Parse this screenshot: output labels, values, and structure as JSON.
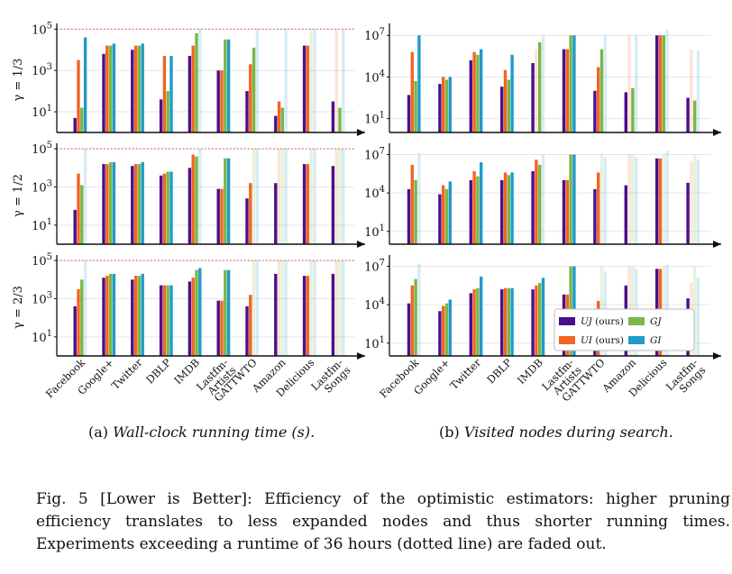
{
  "chart_data": {
    "type": "bar",
    "categories": [
      "Facebook",
      "Google+",
      "Twitter",
      "DBLP",
      "IMDB",
      "Lastfm-Artists",
      "GATTWTO",
      "Amazon",
      "Delicious",
      "Lastfm-Songs"
    ],
    "category_labels": [
      [
        "Facebook"
      ],
      [
        "Google+"
      ],
      [
        "Twitter"
      ],
      [
        "DBLP"
      ],
      [
        "IMDB"
      ],
      [
        "Lastfm-",
        "Artists"
      ],
      [
        "GATTWTO"
      ],
      [
        "Amazon"
      ],
      [
        "Delicious"
      ],
      [
        "Lastfm-",
        "Songs"
      ]
    ],
    "series_names": [
      "UJ",
      "UI",
      "GJ",
      "GI"
    ],
    "legend": [
      {
        "name": "UJ",
        "label": "UJ",
        "suffix": "(ours)",
        "color": "#4a0f8c"
      },
      {
        "name": "UI",
        "label": "UI",
        "suffix": "(ours)",
        "color": "#f26522"
      },
      {
        "name": "GJ",
        "label": "GJ",
        "suffix": "",
        "color": "#7ab648"
      },
      {
        "name": "GI",
        "label": "GI",
        "suffix": "",
        "color": "#1f9bc9"
      }
    ],
    "gamma_labels": [
      "γ = 1/3",
      "γ = 1/2",
      "γ = 2/3"
    ],
    "subcaptions": {
      "a": {
        "prefix": "(a)",
        "text": "Wall-clock running time (s)."
      },
      "b": {
        "prefix": "(b)",
        "text": "Visited nodes during search."
      }
    },
    "panels": [
      {
        "id": "a1",
        "column": "time",
        "row": 1,
        "ylabel": "γ = 1/3",
        "yticks": [
          "10^1",
          "10^3",
          "10^5"
        ],
        "ylim_log10": [
          0,
          5.1
        ],
        "timeout_line": true,
        "series": [
          {
            "name": "UJ",
            "values": [
              0.7,
              3.8,
              4.0,
              1.6,
              3.7,
              3.0,
              2.0,
              0.8,
              4.2,
              1.5
            ],
            "faded": [
              false,
              false,
              false,
              false,
              false,
              false,
              false,
              false,
              false,
              false
            ]
          },
          {
            "name": "UI",
            "values": [
              3.5,
              4.2,
              4.2,
              3.7,
              4.2,
              3.0,
              3.3,
              1.5,
              4.2,
              5.0
            ],
            "faded": [
              false,
              false,
              false,
              false,
              false,
              false,
              false,
              false,
              false,
              true
            ]
          },
          {
            "name": "GJ",
            "values": [
              1.2,
              4.2,
              4.2,
              2.0,
              4.8,
              4.5,
              4.1,
              1.2,
              5.0,
              1.2
            ],
            "faded": [
              false,
              false,
              false,
              false,
              false,
              false,
              false,
              false,
              true,
              false
            ]
          },
          {
            "name": "GI",
            "values": [
              4.6,
              4.3,
              4.3,
              3.7,
              5.0,
              4.5,
              5.0,
              5.0,
              5.0,
              5.0
            ],
            "faded": [
              false,
              false,
              false,
              false,
              true,
              false,
              true,
              true,
              true,
              true
            ]
          }
        ]
      },
      {
        "id": "a2",
        "column": "time",
        "row": 2,
        "ylabel": "γ = 1/2",
        "yticks": [
          "10^1",
          "10^3",
          "10^5"
        ],
        "ylim_log10": [
          0,
          5.1
        ],
        "timeout_line": true,
        "series": [
          {
            "name": "UJ",
            "values": [
              1.8,
              4.2,
              4.1,
              3.6,
              4.0,
              2.9,
              2.4,
              3.2,
              4.2,
              4.1
            ],
            "faded": [
              false,
              false,
              false,
              false,
              false,
              false,
              false,
              false,
              false,
              false
            ]
          },
          {
            "name": "UI",
            "values": [
              3.7,
              4.2,
              4.2,
              3.7,
              4.7,
              2.9,
              3.2,
              5.0,
              4.2,
              5.0
            ],
            "faded": [
              false,
              false,
              false,
              false,
              false,
              false,
              false,
              true,
              false,
              true
            ]
          },
          {
            "name": "GJ",
            "values": [
              3.1,
              4.3,
              4.2,
              3.8,
              4.6,
              4.5,
              5.0,
              5.0,
              5.0,
              5.0
            ],
            "faded": [
              false,
              false,
              false,
              false,
              false,
              false,
              true,
              true,
              true,
              true
            ]
          },
          {
            "name": "GI",
            "values": [
              5.0,
              4.3,
              4.3,
              3.8,
              5.0,
              4.5,
              5.0,
              5.0,
              5.0,
              5.0
            ],
            "faded": [
              true,
              false,
              false,
              false,
              true,
              false,
              true,
              true,
              true,
              true
            ]
          }
        ]
      },
      {
        "id": "a3",
        "column": "time",
        "row": 3,
        "ylabel": "γ = 2/3",
        "yticks": [
          "10^1",
          "10^3",
          "10^5"
        ],
        "ylim_log10": [
          0,
          5.1
        ],
        "timeout_line": true,
        "series": [
          {
            "name": "UJ",
            "values": [
              2.6,
              4.1,
              4.0,
              3.7,
              3.9,
              2.9,
              2.6,
              4.3,
              4.2,
              4.3
            ],
            "faded": [
              false,
              false,
              false,
              false,
              false,
              false,
              false,
              false,
              false,
              false
            ]
          },
          {
            "name": "UI",
            "values": [
              3.5,
              4.2,
              4.2,
              3.7,
              4.1,
              2.9,
              3.2,
              5.0,
              4.2,
              5.0
            ],
            "faded": [
              false,
              false,
              false,
              false,
              false,
              false,
              false,
              true,
              false,
              true
            ]
          },
          {
            "name": "GJ",
            "values": [
              4.0,
              4.3,
              4.2,
              3.7,
              4.5,
              4.5,
              5.0,
              5.0,
              5.0,
              5.0
            ],
            "faded": [
              false,
              false,
              false,
              false,
              false,
              false,
              true,
              true,
              true,
              true
            ]
          },
          {
            "name": "GI",
            "values": [
              5.0,
              4.3,
              4.3,
              3.7,
              4.6,
              4.5,
              5.0,
              5.0,
              5.0,
              5.0
            ],
            "faded": [
              true,
              false,
              false,
              false,
              false,
              false,
              true,
              true,
              true,
              true
            ]
          }
        ]
      },
      {
        "id": "b1",
        "column": "nodes",
        "row": 1,
        "ylabel": "",
        "yticks": [
          "10^1",
          "10^4",
          "10^7"
        ],
        "ylim_log10": [
          0,
          7.6
        ],
        "timeout_line": false,
        "series": [
          {
            "name": "UJ",
            "values": [
              2.7,
              3.5,
              5.2,
              3.3,
              5.0,
              6.0,
              3.0,
              2.9,
              7.0,
              2.5
            ],
            "faded": [
              false,
              false,
              false,
              false,
              false,
              false,
              false,
              false,
              false,
              false
            ]
          },
          {
            "name": "UI",
            "values": [
              5.8,
              4.0,
              5.8,
              4.5,
              6.0,
              6.0,
              4.7,
              7.0,
              7.0,
              6.0
            ],
            "faded": [
              false,
              false,
              false,
              false,
              true,
              false,
              false,
              true,
              false,
              true
            ]
          },
          {
            "name": "GJ",
            "values": [
              3.7,
              3.8,
              5.6,
              3.8,
              6.5,
              7.0,
              6.0,
              3.2,
              7.0,
              2.3
            ],
            "faded": [
              false,
              false,
              false,
              false,
              false,
              false,
              false,
              false,
              false,
              false
            ]
          },
          {
            "name": "GI",
            "values": [
              7.0,
              4.0,
              6.0,
              5.6,
              7.0,
              7.0,
              7.0,
              7.0,
              7.4,
              5.9
            ],
            "faded": [
              false,
              false,
              false,
              false,
              true,
              false,
              true,
              true,
              true,
              true
            ]
          }
        ]
      },
      {
        "id": "b2",
        "column": "nodes",
        "row": 2,
        "ylabel": "",
        "yticks": [
          "10^1",
          "10^4",
          "10^7"
        ],
        "ylim_log10": [
          0,
          7.6
        ],
        "timeout_line": false,
        "series": [
          {
            "name": "UJ",
            "values": [
              4.3,
              3.9,
              5.0,
              5.0,
              5.7,
              5.0,
              4.3,
              4.6,
              6.7,
              4.8
            ],
            "faded": [
              false,
              false,
              false,
              false,
              false,
              false,
              false,
              false,
              false,
              false
            ]
          },
          {
            "name": "UI",
            "values": [
              6.2,
              4.6,
              5.7,
              5.6,
              6.6,
              5.0,
              5.6,
              7.0,
              6.7,
              6.5
            ],
            "faded": [
              false,
              false,
              false,
              false,
              false,
              false,
              false,
              true,
              false,
              true
            ]
          },
          {
            "name": "GJ",
            "values": [
              5.0,
              4.3,
              5.3,
              5.4,
              6.2,
              7.0,
              7.0,
              7.0,
              7.0,
              7.0
            ],
            "faded": [
              false,
              false,
              false,
              false,
              false,
              false,
              true,
              true,
              true,
              true
            ]
          },
          {
            "name": "GI",
            "values": [
              7.1,
              4.9,
              6.4,
              5.6,
              7.0,
              7.0,
              6.8,
              6.8,
              7.3,
              6.6
            ],
            "faded": [
              true,
              false,
              false,
              false,
              true,
              false,
              true,
              true,
              true,
              true
            ]
          }
        ]
      },
      {
        "id": "b3",
        "column": "nodes",
        "row": 3,
        "ylabel": "",
        "yticks": [
          "10^1",
          "10^4",
          "10^7"
        ],
        "ylim_log10": [
          0,
          7.6
        ],
        "timeout_line": false,
        "series": [
          {
            "name": "UJ",
            "values": [
              4.1,
              3.5,
              4.9,
              5.2,
              5.2,
              4.8,
              3.7,
              5.5,
              6.8,
              4.5
            ],
            "faded": [
              false,
              false,
              false,
              false,
              false,
              false,
              false,
              false,
              false,
              false
            ]
          },
          {
            "name": "UI",
            "values": [
              5.5,
              3.9,
              5.2,
              5.3,
              5.5,
              4.8,
              4.3,
              7.0,
              6.8,
              5.7
            ],
            "faded": [
              false,
              false,
              false,
              false,
              false,
              false,
              false,
              true,
              false,
              true
            ]
          },
          {
            "name": "GJ",
            "values": [
              6.0,
              4.1,
              5.3,
              5.3,
              5.7,
              7.0,
              7.0,
              7.0,
              7.0,
              7.0
            ],
            "faded": [
              false,
              false,
              false,
              false,
              false,
              false,
              true,
              true,
              true,
              true
            ]
          },
          {
            "name": "GI",
            "values": [
              7.2,
              4.4,
              6.2,
              5.3,
              6.1,
              7.0,
              6.6,
              6.8,
              7.1,
              6.1
            ],
            "faded": [
              true,
              false,
              false,
              false,
              false,
              false,
              true,
              true,
              true,
              true
            ]
          }
        ]
      }
    ]
  },
  "caption": {
    "lines": [
      "Fig. 5 [Lower is Better]: Efficiency of the optimistic estimators: higher pruning",
      "efficiency translates to less expanded nodes and thus shorter running times.",
      "Experiments exceeding a runtime of 36 hours (dotted line) are faded out."
    ]
  }
}
